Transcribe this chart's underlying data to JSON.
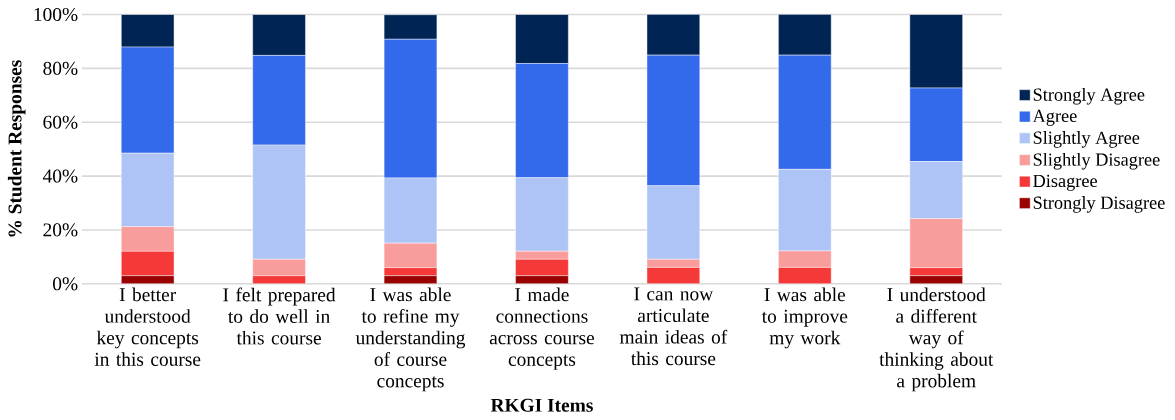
{
  "chart_data": {
    "type": "bar",
    "stacked": true,
    "xlabel": "RKGI Items",
    "ylabel": "% Student Responses",
    "categories": [
      "I better understood key concepts in this course",
      "I felt prepared to do well in this course",
      "I was able to refine my understanding of course concepts",
      "I made connections across course concepts",
      "I can now articulate main ideas of this course",
      "I was able to improve my work",
      "I understood a different way of thinking about a problem"
    ],
    "series": [
      {
        "name": "Strongly Disagree",
        "color": "#990000",
        "values": [
          3.0,
          0,
          3.0,
          3.0,
          0,
          0,
          3.0
        ]
      },
      {
        "name": "Disagree",
        "color": "#f53838",
        "values": [
          9.1,
          3.0,
          3.0,
          6.1,
          6.1,
          6.1,
          3.0
        ]
      },
      {
        "name": "Slightly Disagree",
        "color": "#f99c9c",
        "values": [
          9.1,
          6.1,
          9.1,
          3.0,
          3.0,
          6.1,
          18.2
        ]
      },
      {
        "name": "Slightly Agree",
        "color": "#afc4f6",
        "values": [
          27.3,
          42.4,
          24.2,
          27.3,
          27.3,
          30.3,
          21.2
        ]
      },
      {
        "name": "Agree",
        "color": "#3369eb",
        "values": [
          39.4,
          33.3,
          51.5,
          42.4,
          48.5,
          42.4,
          27.3
        ]
      },
      {
        "name": "Strongly Agree",
        "color": "#002554",
        "values": [
          12.1,
          15.2,
          9.1,
          18.2,
          15.2,
          15.2,
          27.3
        ]
      }
    ],
    "ylim": [
      0,
      100
    ],
    "yticks": [
      {
        "value": 0,
        "label": "0%"
      },
      {
        "value": 20,
        "label": "20%"
      },
      {
        "value": 40,
        "label": "40%"
      },
      {
        "value": 60,
        "label": "60%"
      },
      {
        "value": 80,
        "label": "80%"
      },
      {
        "value": 100,
        "label": "100%"
      }
    ],
    "grid": "y",
    "legend": "right"
  }
}
